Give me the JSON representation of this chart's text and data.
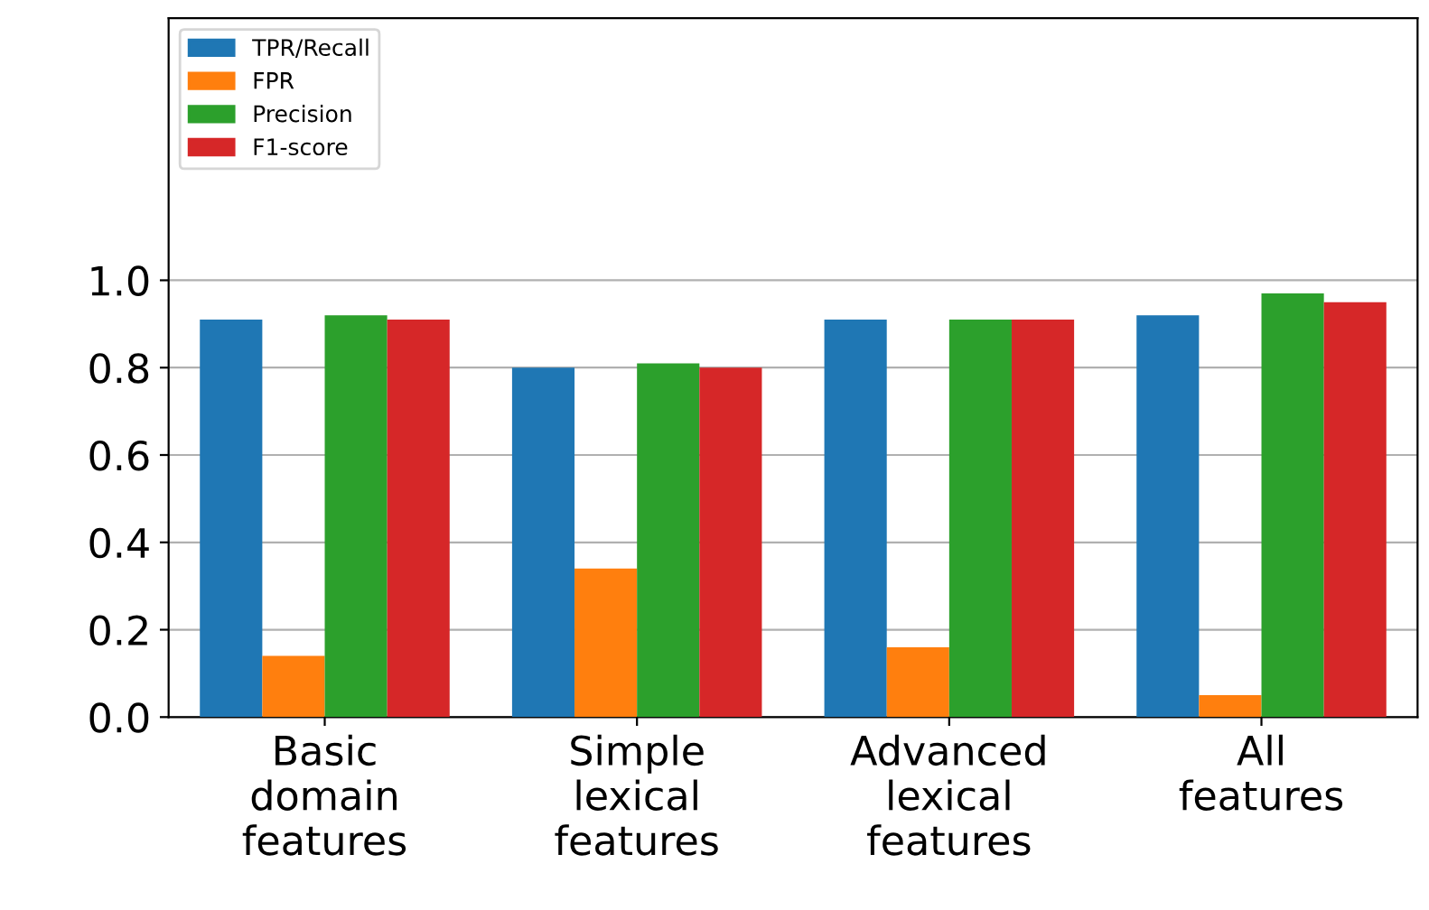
{
  "chart_data": {
    "type": "bar",
    "categories": [
      "Basic\ndomain\nfeatures",
      "Simple\nlexical\nfeatures",
      "Advanced\nlexical\nfeatures",
      "All\nfeatures"
    ],
    "series": [
      {
        "name": "TPR/Recall",
        "color": "#1f77b4",
        "values": [
          0.91,
          0.8,
          0.91,
          0.92
        ]
      },
      {
        "name": "FPR",
        "color": "#ff7f0e",
        "values": [
          0.14,
          0.34,
          0.16,
          0.05
        ]
      },
      {
        "name": "Precision",
        "color": "#2ca02c",
        "values": [
          0.92,
          0.81,
          0.91,
          0.97
        ]
      },
      {
        "name": "F1-score",
        "color": "#d62728",
        "values": [
          0.91,
          0.8,
          0.91,
          0.95
        ]
      }
    ],
    "ylim": [
      0,
      1.6
    ],
    "yticks": [
      {
        "value": 0,
        "label": "0.0"
      },
      0.2,
      0.4,
      0.6,
      0.8,
      {
        "value": 1,
        "label": "1.0"
      }
    ],
    "grid": "y",
    "legend": "top left"
  }
}
